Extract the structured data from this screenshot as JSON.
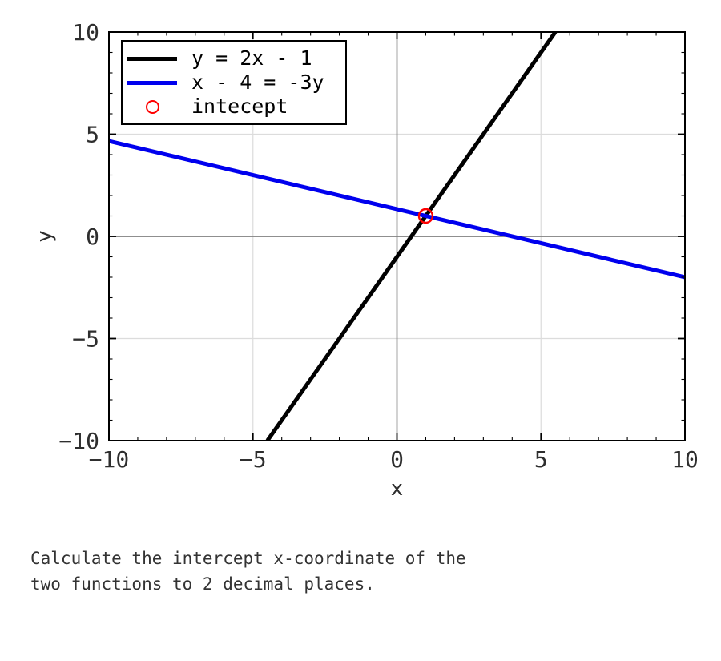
{
  "chart_data": {
    "type": "line",
    "title": "",
    "xlabel": "x",
    "ylabel": "y",
    "xlim": [
      -10,
      10
    ],
    "ylim": [
      -10,
      10
    ],
    "x_major_ticks": [
      -10,
      -5,
      0,
      5,
      10
    ],
    "y_major_ticks": [
      -10,
      -5,
      0,
      5,
      10
    ],
    "x_tick_labels": [
      "−10",
      "−5",
      "0",
      "5",
      "10"
    ],
    "y_tick_labels": [
      "−10",
      "−5",
      "0",
      "5",
      "10"
    ],
    "minor_tick_step": 1,
    "grid": true,
    "legend_position": "upper left",
    "series": [
      {
        "name": "y = 2x - 1",
        "color": "#000000",
        "points": [
          [
            -4.5,
            -10
          ],
          [
            5.5,
            10
          ]
        ]
      },
      {
        "name": "x - 4 = -3y",
        "color": "#0000ee",
        "points": [
          [
            -10,
            4.6667
          ],
          [
            10,
            -2
          ]
        ]
      }
    ],
    "intercept_point": {
      "x": 1,
      "y": 1,
      "label": "intecept",
      "color": "#ff0000"
    },
    "style": {
      "grid_color": "#dcdcdc",
      "zero_line_color": "#808080",
      "spine_color": "#000000",
      "line_width": 5
    }
  },
  "legend": {
    "entries": [
      {
        "label": "y = 2x - 1",
        "type": "line",
        "color": "#000000"
      },
      {
        "label": "x - 4 = -3y",
        "type": "line",
        "color": "#0000ee"
      },
      {
        "label": "intecept",
        "type": "circle",
        "color": "#ff0000"
      }
    ]
  },
  "question": {
    "text": "Calculate the intercept x-coordinate of the\ntwo functions to 2 decimal places."
  }
}
